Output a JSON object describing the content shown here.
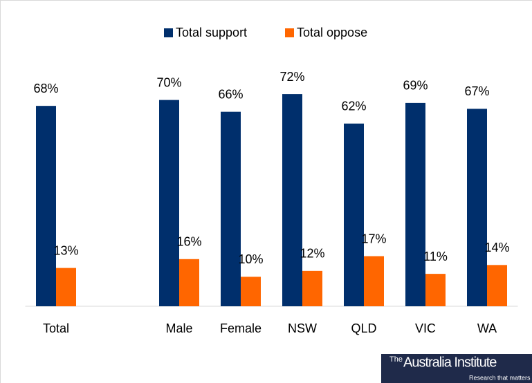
{
  "chart_data": {
    "type": "bar",
    "categories": [
      "Total",
      null,
      "Male",
      "Female",
      "NSW",
      "QLD",
      "VIC",
      "WA"
    ],
    "series": [
      {
        "name": "Total support",
        "color": "#002f6c",
        "values": [
          68,
          null,
          70,
          66,
          72,
          62,
          69,
          67
        ],
        "value_labels": [
          "68%",
          null,
          "70%",
          "66%",
          "72%",
          "62%",
          "69%",
          "67%"
        ]
      },
      {
        "name": "Total oppose",
        "color": "#ff6600",
        "values": [
          13,
          null,
          16,
          10,
          12,
          17,
          11,
          14
        ],
        "value_labels": [
          "13%",
          null,
          "16%",
          "10%",
          "12%",
          "17%",
          "11%",
          "14%"
        ]
      }
    ],
    "ylim": [
      0,
      80
    ],
    "legend": "top"
  },
  "logo": {
    "prefix": "The",
    "name": "Australia Institute",
    "tagline": "Research that matters"
  }
}
